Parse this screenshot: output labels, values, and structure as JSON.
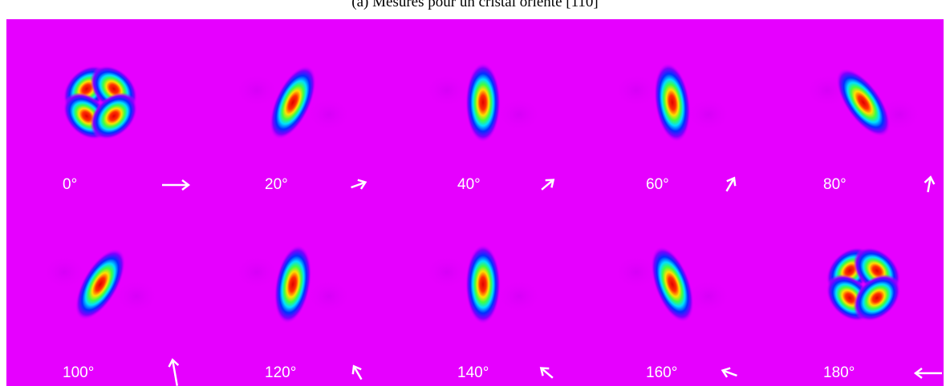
{
  "caption": "(a) Mesures pour un cristal orienté [110]",
  "panels": [
    {
      "label": "0°",
      "angle": 0
    },
    {
      "label": "20°",
      "angle": 20
    },
    {
      "label": "40°",
      "angle": 40
    },
    {
      "label": "60°",
      "angle": 60
    },
    {
      "label": "80°",
      "angle": 80
    },
    {
      "label": "100°",
      "angle": 100
    },
    {
      "label": "120°",
      "angle": 120
    },
    {
      "label": "140°",
      "angle": 140
    },
    {
      "label": "160°",
      "angle": 160
    },
    {
      "label": "180°",
      "angle": 180
    }
  ]
}
